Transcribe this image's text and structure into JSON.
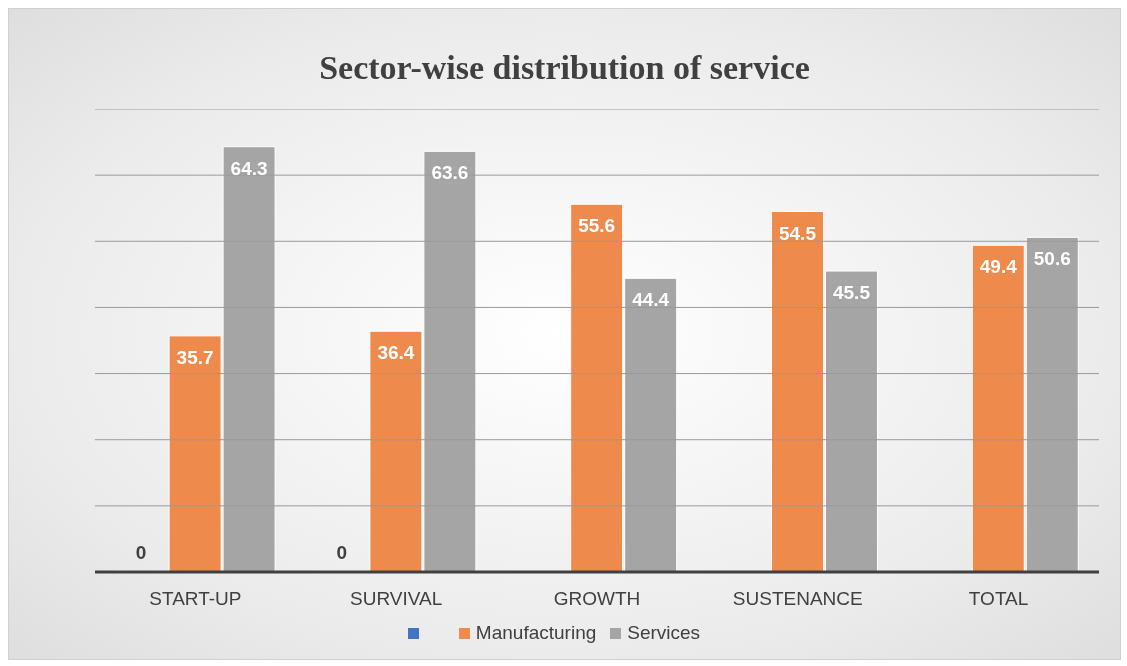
{
  "chart_data": {
    "type": "bar",
    "title": "Sector-wise distribution of service",
    "categories": [
      "START-UP",
      "SURVIVAL",
      "GROWTH",
      "SUSTENANCE",
      "TOTAL"
    ],
    "series": [
      {
        "color": "#4472c4",
        "values": [
          0,
          0,
          null,
          null,
          null
        ]
      },
      {
        "name": "Manufacturing",
        "color": "#ed8a4c",
        "values": [
          35.7,
          36.4,
          55.6,
          54.5,
          49.4
        ]
      },
      {
        "name": "Services",
        "color": "#a5a5a5",
        "values": [
          64.3,
          63.6,
          44.4,
          45.5,
          50.6
        ]
      }
    ],
    "ylim": [
      0,
      70
    ],
    "yticks": [
      {
        "value": 0,
        "label": null
      },
      {
        "value": 10,
        "label": null
      },
      {
        "value": 20,
        "label": null
      },
      {
        "value": 30,
        "label": null
      },
      {
        "value": 40,
        "label": null
      },
      {
        "value": 50,
        "label": null
      },
      {
        "value": 60,
        "label": null
      },
      {
        "value": 70,
        "label": null
      }
    ],
    "tick_labels": "x",
    "grid": "y",
    "data_labels": true,
    "legend": "bottom"
  }
}
